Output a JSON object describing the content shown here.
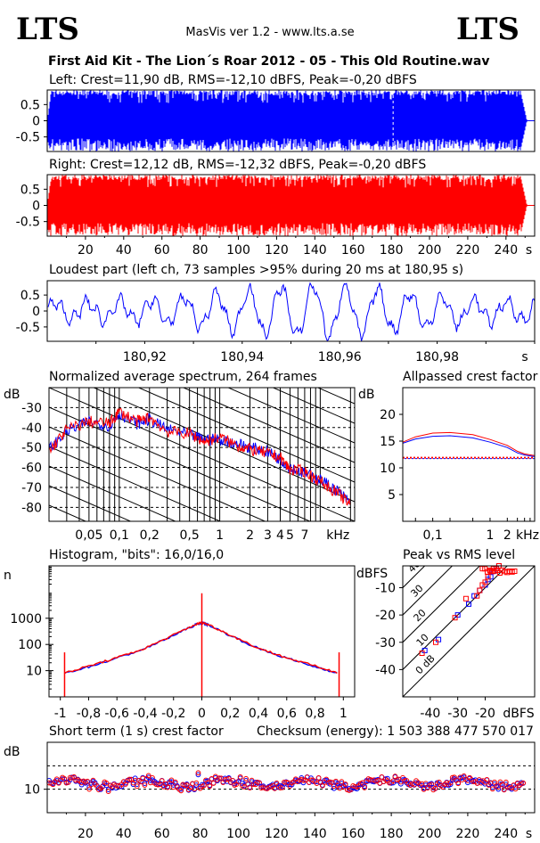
{
  "header": {
    "logo_left": "LTS",
    "logo_right": "LTS",
    "app_title": "MasVis ver 1.2 - www.lts.a.se",
    "track_title": "First Aid Kit - The Lion´s Roar 2012 - 05 - This Old Routine.wav"
  },
  "colors": {
    "left": "#0000ff",
    "right": "#ff0000",
    "grid": "#000000"
  },
  "chart_data": [
    {
      "id": "left",
      "type": "area",
      "title": "Left: Crest=11,90 dB, RMS=-12,10 dBFS, Peak=-0,20 dBFS",
      "ylim": [
        -0.95,
        0.95
      ],
      "xlim": [
        0,
        255
      ],
      "yticks": [
        "0.5",
        "0",
        "-0.5"
      ],
      "ytick_values": [
        0.5,
        0,
        -0.5
      ],
      "marker_x": 180.95,
      "end_x": 248,
      "color": "#0000ff"
    },
    {
      "id": "right",
      "type": "area",
      "title": "Right: Crest=12,12 dB, RMS=-12,32 dBFS, Peak=-0,20 dBFS",
      "ylim": [
        -0.95,
        0.95
      ],
      "xlim": [
        0,
        255
      ],
      "yticks": [
        "0.5",
        "0",
        "-0.5"
      ],
      "ytick_values": [
        0.5,
        0,
        -0.5
      ],
      "xticks": [
        "20",
        "40",
        "60",
        "80",
        "100",
        "120",
        "140",
        "160",
        "180",
        "200",
        "220",
        "240",
        "s"
      ],
      "xtick_values": [
        20,
        40,
        60,
        80,
        100,
        120,
        140,
        160,
        180,
        200,
        220,
        240,
        252
      ],
      "end_x": 248,
      "color": "#ff0000"
    },
    {
      "id": "loudest",
      "type": "line",
      "title": "Loudest part (left  ch, 73 samples >95% during 20 ms at 180,95 s)",
      "xlim": [
        180.9,
        181.0
      ],
      "ylim": [
        -0.95,
        0.95
      ],
      "yticks": [
        "0.5",
        "0",
        "-0.5"
      ],
      "ytick_values": [
        0.5,
        0,
        -0.5
      ],
      "xticks": [
        "180,92",
        "180,94",
        "180,96",
        "180,98",
        "s"
      ],
      "xtick_values": [
        180.92,
        180.94,
        180.96,
        180.98,
        180.998
      ],
      "color": "#0000ff"
    },
    {
      "id": "spectrum",
      "type": "line",
      "title": "Normalized average spectrum, 264 frames",
      "ylabel": "dB",
      "yticks": [
        "-30",
        "-40",
        "-50",
        "-60",
        "-70",
        "-80"
      ],
      "ytick_values": [
        -30,
        -40,
        -50,
        -60,
        -70,
        -80
      ],
      "ylim": [
        -87,
        -20
      ],
      "xscale": "log",
      "xlim": [
        0.02,
        22
      ],
      "xticks": [
        "0,05",
        "0,1",
        "0,2",
        "0,5",
        "1",
        "2",
        "3",
        "4",
        "5",
        "7",
        "kHz"
      ],
      "xtick_values": [
        0.05,
        0.1,
        0.2,
        0.5,
        1,
        2,
        3,
        4,
        5,
        7,
        15
      ],
      "series": [
        {
          "color": "#0000ff",
          "x": [
            0.02,
            0.03,
            0.05,
            0.08,
            0.1,
            0.15,
            0.2,
            0.3,
            0.5,
            0.7,
            1,
            1.5,
            2,
            3,
            4,
            5,
            7,
            10,
            15,
            20
          ],
          "y": [
            -51,
            -42,
            -37,
            -39,
            -33,
            -38,
            -36,
            -41,
            -44,
            -46,
            -46,
            -48,
            -50,
            -52,
            -56,
            -60,
            -63,
            -66,
            -72,
            -78
          ]
        },
        {
          "color": "#ff0000",
          "x": [
            0.02,
            0.03,
            0.05,
            0.08,
            0.1,
            0.15,
            0.2,
            0.3,
            0.5,
            0.7,
            1,
            1.5,
            2,
            3,
            4,
            5,
            7,
            10,
            15,
            20
          ],
          "y": [
            -52,
            -41,
            -37,
            -38,
            -32,
            -37,
            -35,
            -42,
            -43,
            -47,
            -45,
            -49,
            -51,
            -53,
            -55,
            -61,
            -62,
            -67,
            -73,
            -79
          ]
        }
      ]
    },
    {
      "id": "allpass",
      "type": "line",
      "title": "Allpassed crest factor",
      "ylabel": "dB",
      "yticks": [
        "20",
        "15",
        "10",
        "5"
      ],
      "ytick_values": [
        20,
        15,
        10,
        5
      ],
      "ylim": [
        0,
        25
      ],
      "xscale": "log",
      "xlim": [
        0.03,
        6
      ],
      "xticks": [
        "0,1",
        "1",
        "2",
        "kHz"
      ],
      "xtick_values": [
        0.1,
        1,
        2,
        4.5
      ],
      "reference": 11.9,
      "series": [
        {
          "color": "#0000ff",
          "x": [
            0.03,
            0.05,
            0.1,
            0.2,
            0.5,
            1,
            2,
            3,
            4,
            6
          ],
          "y": [
            14.6,
            15.4,
            15.9,
            16,
            15.6,
            14.8,
            13.8,
            12.8,
            12.4,
            12.1
          ]
        },
        {
          "color": "#ff0000",
          "x": [
            0.03,
            0.05,
            0.1,
            0.2,
            0.5,
            1,
            2,
            3,
            4,
            6
          ],
          "y": [
            14.8,
            15.8,
            16.5,
            16.6,
            16.2,
            15.3,
            14.2,
            13.1,
            12.6,
            12.3
          ]
        }
      ]
    },
    {
      "id": "histogram",
      "type": "line",
      "title": "Histogram, \"bits\": 16,0/16,0",
      "ylabel": "n",
      "yscale": "log",
      "ylim": [
        1,
        100000
      ],
      "yticks": [
        "1000",
        "100",
        "10"
      ],
      "ytick_values": [
        1000,
        100,
        10
      ],
      "xlim": [
        -1.08,
        1.08
      ],
      "xticks": [
        "-1",
        "-0,8",
        "-0,6",
        "-0,4",
        "-0,2",
        "0",
        "0,2",
        "0,4",
        "0,6",
        "0,8",
        "1"
      ],
      "xtick_values": [
        -1,
        -0.8,
        -0.6,
        -0.4,
        -0.2,
        0,
        0.2,
        0.4,
        0.6,
        0.8,
        1
      ],
      "series": [
        {
          "color": "#0000ff",
          "x": [
            -0.97,
            -0.8,
            -0.6,
            -0.4,
            -0.2,
            -0.05,
            0,
            0.05,
            0.2,
            0.4,
            0.6,
            0.8,
            0.97
          ],
          "y": [
            8,
            14,
            30,
            70,
            220,
            550,
            680,
            550,
            220,
            70,
            30,
            14,
            8
          ]
        },
        {
          "color": "#ff0000",
          "x": [
            -0.97,
            -0.8,
            -0.6,
            -0.4,
            -0.2,
            -0.05,
            0,
            0.05,
            0.2,
            0.4,
            0.6,
            0.8,
            0.97
          ],
          "y": [
            8,
            15,
            31,
            72,
            230,
            560,
            700,
            560,
            230,
            72,
            31,
            15,
            8
          ]
        }
      ]
    },
    {
      "id": "peakrms",
      "type": "scatter",
      "title": "Peak vs RMS level",
      "ylabel": "dBFS",
      "xlabel": "dBFS",
      "xlim": [
        -50,
        -2
      ],
      "ylim": [
        -50,
        -2
      ],
      "yticks": [
        "-10",
        "-20",
        "-30",
        "-40"
      ],
      "ytick_values": [
        -10,
        -20,
        -30,
        -40
      ],
      "xticks": [
        "-40",
        "-30",
        "-20"
      ],
      "xtick_values": [
        -40,
        -30,
        -20
      ],
      "diagonals": [
        "0 dB",
        "10",
        "20",
        "30",
        "40"
      ],
      "diagonal_values": [
        0,
        10,
        20,
        30,
        40
      ],
      "series": [
        {
          "color": "#0000ff",
          "x": [
            -42,
            -37,
            -30,
            -26,
            -24,
            -22,
            -20,
            -19,
            -18,
            -17,
            -16,
            -15
          ],
          "y": [
            -33,
            -29,
            -20,
            -16,
            -13,
            -11,
            -9,
            -7,
            -6,
            -4,
            -3,
            -2
          ]
        },
        {
          "color": "#ff0000",
          "x": [
            -43,
            -38,
            -31,
            -27,
            -23,
            -22,
            -21,
            -20,
            -19,
            -18,
            -17,
            -16,
            -15
          ],
          "y": [
            -34,
            -30,
            -21,
            -14,
            -13,
            -11,
            -9,
            -8,
            -6,
            -4,
            -3,
            -3,
            -2
          ]
        }
      ]
    },
    {
      "id": "shortcrest",
      "type": "scatter",
      "title": "Short term (1 s) crest factor",
      "checksum": "Checksum (energy):  1 503 388 477 570 017",
      "ylabel": "dB",
      "ytick_labels": [
        "10"
      ],
      "ytick_values": [
        10
      ],
      "ylim": [
        0,
        30
      ],
      "xlim": [
        0,
        255
      ],
      "xticks": [
        "20",
        "40",
        "60",
        "80",
        "100",
        "120",
        "140",
        "160",
        "180",
        "200",
        "220",
        "240",
        "s"
      ],
      "xtick_values": [
        20,
        40,
        60,
        80,
        100,
        120,
        140,
        160,
        180,
        200,
        220,
        240,
        252
      ],
      "reference_lines": [
        20,
        10
      ]
    }
  ]
}
